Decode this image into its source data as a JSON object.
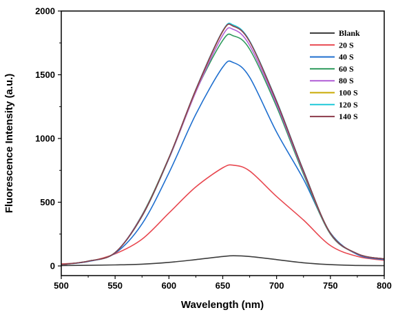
{
  "chart_data": {
    "type": "line",
    "xlabel": "Wavelength (nm)",
    "ylabel": "Fluorescence Intensity (a.u.)",
    "xlim": [
      500,
      800
    ],
    "ylim": [
      0,
      2000
    ],
    "x_ticks": [
      "500",
      "550",
      "600",
      "650",
      "700",
      "750",
      "800"
    ],
    "y_ticks": [
      "0",
      "500",
      "1000",
      "1500",
      "2000"
    ],
    "grid": false,
    "legend_position": "top-right",
    "x": [
      500,
      525,
      550,
      575,
      600,
      625,
      650,
      660,
      675,
      700,
      725,
      750,
      775,
      800
    ],
    "series": [
      {
        "name": "Blank",
        "color": "#3c3c3c",
        "values": [
          3,
          5,
          8,
          14,
          28,
          50,
          74,
          80,
          74,
          50,
          25,
          10,
          4,
          2
        ]
      },
      {
        "name": "20 S",
        "color": "#e8474f",
        "values": [
          15,
          35,
          95,
          210,
          415,
          620,
          770,
          790,
          745,
          545,
          360,
          160,
          75,
          45
        ]
      },
      {
        "name": "40 S",
        "color": "#1f6fcf",
        "values": [
          10,
          35,
          100,
          330,
          730,
          1190,
          1560,
          1595,
          1480,
          1050,
          680,
          260,
          90,
          50
        ]
      },
      {
        "name": "60 S",
        "color": "#2e9a5c",
        "values": [
          10,
          38,
          105,
          400,
          850,
          1370,
          1770,
          1805,
          1700,
          1250,
          720,
          250,
          95,
          55
        ]
      },
      {
        "name": "80 S",
        "color": "#b05dd6",
        "values": [
          10,
          38,
          105,
          395,
          840,
          1365,
          1810,
          1855,
          1730,
          1270,
          735,
          255,
          95,
          55
        ]
      },
      {
        "name": "100 S",
        "color": "#c8a800",
        "values": [
          10,
          38,
          105,
          390,
          845,
          1380,
          1840,
          1885,
          1760,
          1290,
          745,
          258,
          96,
          55
        ]
      },
      {
        "name": "120 S",
        "color": "#1ec8d8",
        "values": [
          10,
          38,
          105,
          390,
          845,
          1385,
          1845,
          1890,
          1765,
          1295,
          748,
          258,
          96,
          55
        ]
      },
      {
        "name": "140 S",
        "color": "#8b3a4a",
        "values": [
          10,
          38,
          105,
          392,
          848,
          1383,
          1842,
          1880,
          1760,
          1290,
          745,
          257,
          96,
          55
        ]
      }
    ]
  }
}
